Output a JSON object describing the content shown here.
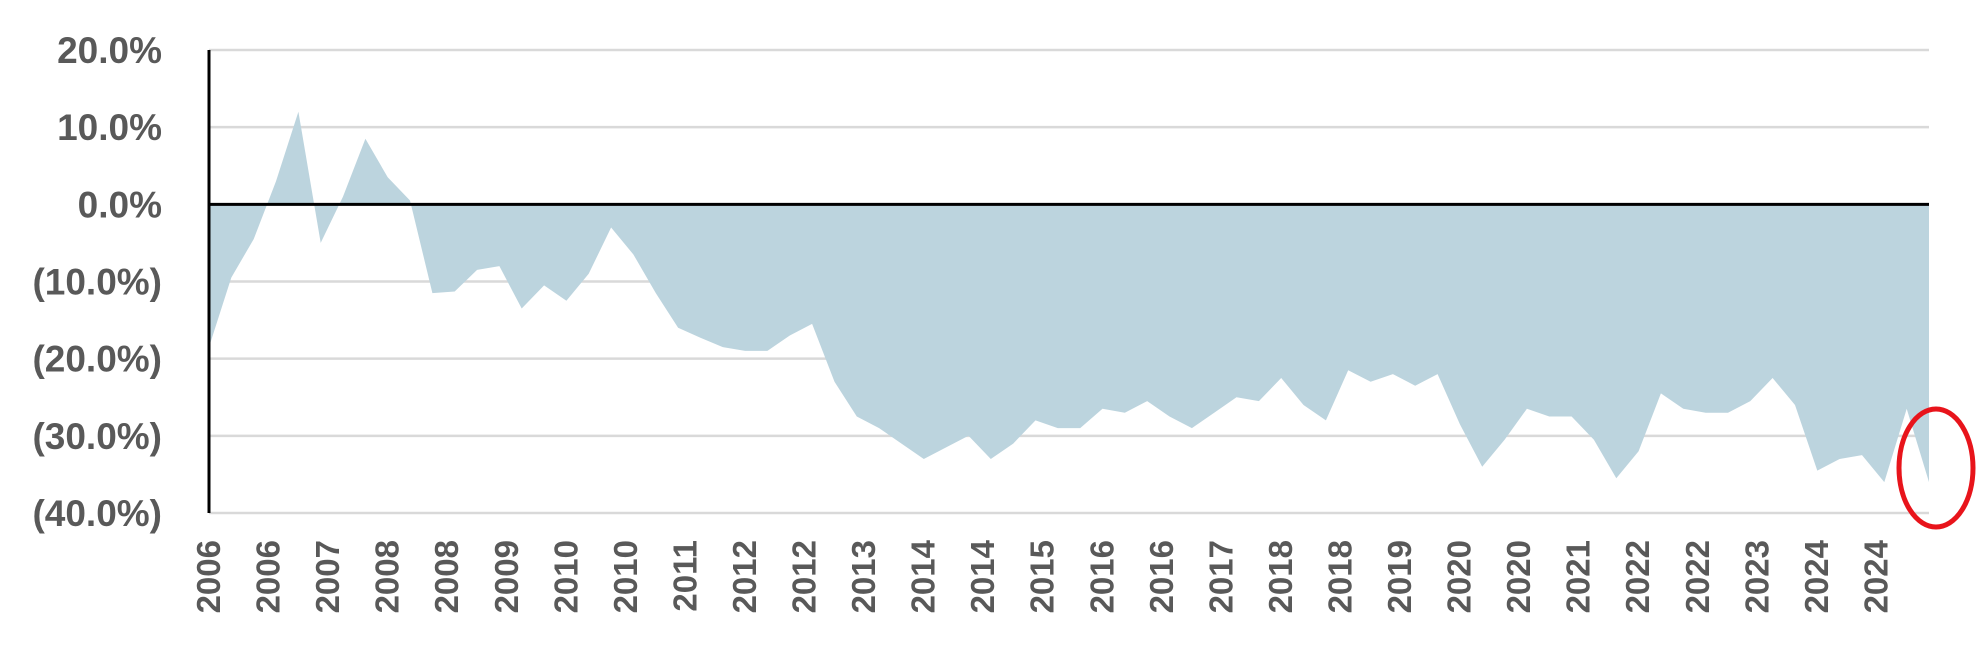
{
  "chart_data": {
    "type": "area",
    "title": "",
    "xlabel": "",
    "ylabel": "",
    "ylim": [
      -40,
      20
    ],
    "y_ticks": [
      20,
      10,
      0,
      -10,
      -20,
      -30,
      -40
    ],
    "y_tick_labels": [
      "20.0%",
      "10.0%",
      "0.0%",
      "(10.0%)",
      "(20.0%)",
      "(30.0%)",
      "(40.0%)"
    ],
    "x_tick_labels": [
      "2006",
      "2006",
      "2007",
      "2008",
      "2008",
      "2009",
      "2010",
      "2010",
      "2011",
      "2012",
      "2012",
      "2013",
      "2014",
      "2014",
      "2015",
      "2016",
      "2016",
      "2017",
      "2018",
      "2018",
      "2019",
      "2020",
      "2020",
      "2021",
      "2022",
      "2022",
      "2023",
      "2024",
      "2024"
    ],
    "grid": true,
    "x_start": "2006-01",
    "x_end": "2024-12",
    "values": [
      -18.5,
      -9.5,
      -4.5,
      3.0,
      12.0,
      -5.0,
      1.0,
      8.5,
      3.5,
      0.5,
      -11.5,
      -11.3,
      -8.5,
      -8.0,
      -13.5,
      -10.5,
      -12.5,
      -9.0,
      -3.0,
      -6.5,
      -11.5,
      -16.0,
      -17.3,
      -18.5,
      -19.0,
      -19.0,
      -17.0,
      -15.5,
      -23.0,
      -27.5,
      -29.0,
      -31.0,
      -33.0,
      -31.5,
      -30.0,
      -33.0,
      -31.0,
      -28.0,
      -29.0,
      -29.0,
      -26.5,
      -27.0,
      -25.5,
      -27.5,
      -29.0,
      -27.0,
      -25.0,
      -25.5,
      -22.5,
      -26.0,
      -28.0,
      -21.5,
      -23.0,
      -22.0,
      -23.5,
      -22.0,
      -28.5,
      -34.0,
      -30.5,
      -26.5,
      -27.5,
      -27.5,
      -30.5,
      -35.5,
      -32.0,
      -24.5,
      -26.5,
      -27.0,
      -27.0,
      -25.5,
      -22.5,
      -26.0,
      -34.5,
      -33.0,
      -32.5,
      -36.0,
      -26.5,
      -36.0
    ],
    "annotation": "red-circle-highlight-latest",
    "colors": {
      "area": "#bcd4de",
      "zero_line": "#000000",
      "grid": "#d9d9d9",
      "axis": "#000000",
      "text": "#595959",
      "annotation": "#e8141b"
    }
  }
}
